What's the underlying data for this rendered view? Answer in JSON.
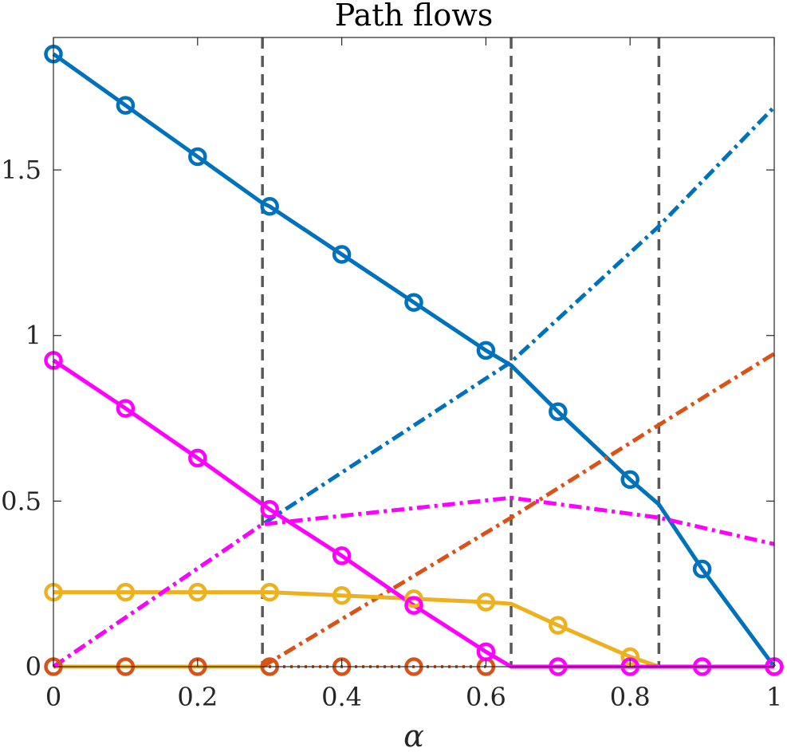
{
  "chart_data": {
    "type": "line",
    "title": "Path flows",
    "xlabel": "α",
    "ylabel": "",
    "xlim": [
      0,
      1
    ],
    "ylim": [
      0,
      1.9
    ],
    "xticks": [
      0,
      0.2,
      0.4,
      0.6,
      0.8,
      1
    ],
    "xtick_labels": [
      "0",
      "0.2",
      "0.4",
      "0.6",
      "0.8",
      "1"
    ],
    "yticks": [
      0,
      0.5,
      1,
      1.5
    ],
    "ytick_labels": [
      "0",
      "0.5",
      "1",
      "1.5"
    ],
    "grid": false,
    "legend": "none",
    "vlines": [
      {
        "x": 0.29,
        "color": "#595959",
        "style": "dashed"
      },
      {
        "x": 0.635,
        "color": "#595959",
        "style": "dashed"
      },
      {
        "x": 0.84,
        "color": "#595959",
        "style": "dashed"
      }
    ],
    "series": [
      {
        "color": "#0072BD",
        "style": "solid",
        "marker": "circle",
        "x": [
          0,
          0.1,
          0.2,
          0.29,
          0.3,
          0.4,
          0.5,
          0.6,
          0.635,
          0.7,
          0.8,
          0.84,
          0.9,
          1
        ],
        "y": [
          1.85,
          1.695,
          1.54,
          1.4,
          1.39,
          1.245,
          1.1,
          0.955,
          0.91,
          0.77,
          0.565,
          0.49,
          0.295,
          0
        ]
      },
      {
        "color": "#0072BD",
        "style": "dashdot",
        "marker": "none",
        "x": [
          0,
          0.29,
          0.635,
          0.84,
          1
        ],
        "y": [
          0,
          0.43,
          0.92,
          1.33,
          1.69
        ]
      },
      {
        "color": "#D95319",
        "style": "dashdot",
        "marker": "none",
        "x": [
          0.29,
          0.635,
          0.84,
          1
        ],
        "y": [
          0,
          0.45,
          0.73,
          0.945
        ]
      },
      {
        "color": "#D95319",
        "style": "dotted",
        "marker": "circle",
        "x": [
          0,
          0.1,
          0.2,
          0.3,
          0.4,
          0.5,
          0.6
        ],
        "y": [
          0,
          0,
          0,
          0,
          0,
          0,
          0
        ]
      },
      {
        "color": "#EDB120",
        "style": "solid",
        "marker": "circle",
        "x": [
          0,
          0.1,
          0.2,
          0.29,
          0.3,
          0.4,
          0.5,
          0.6,
          0.635,
          0.7,
          0.8,
          0.84
        ],
        "y": [
          0.225,
          0.225,
          0.225,
          0.225,
          0.225,
          0.215,
          0.205,
          0.195,
          0.19,
          0.125,
          0.03,
          0
        ]
      },
      {
        "color": "#EDB120",
        "style": "solid",
        "marker": "none",
        "x": [
          0,
          0.29
        ],
        "y": [
          0,
          0
        ]
      },
      {
        "color": "#FF00FF",
        "style": "solid",
        "marker": "circle",
        "x": [
          0,
          0.1,
          0.2,
          0.29,
          0.3,
          0.4,
          0.5,
          0.6,
          0.635,
          0.7,
          0.8,
          0.9,
          1
        ],
        "y": [
          0.925,
          0.78,
          0.63,
          0.49,
          0.475,
          0.335,
          0.185,
          0.045,
          0,
          0,
          0,
          0,
          0
        ]
      },
      {
        "color": "#FF00FF",
        "style": "dashdot",
        "marker": "none",
        "x": [
          0,
          0.29,
          0.635,
          0.84,
          1
        ],
        "y": [
          0,
          0.43,
          0.51,
          0.45,
          0.37
        ]
      }
    ]
  }
}
